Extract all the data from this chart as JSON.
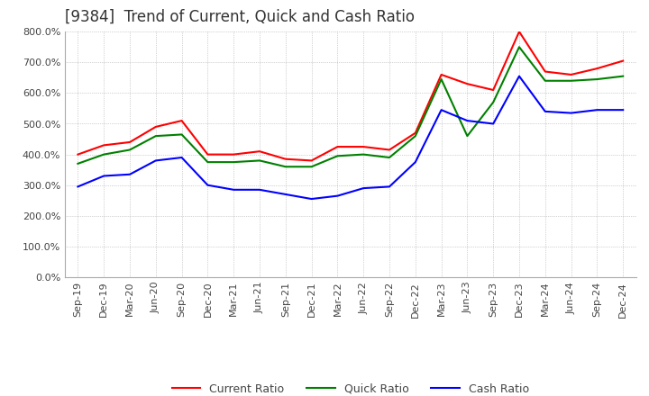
{
  "title": "[9384]  Trend of Current, Quick and Cash Ratio",
  "x_labels": [
    "Sep-19",
    "Dec-19",
    "Mar-20",
    "Jun-20",
    "Sep-20",
    "Dec-20",
    "Mar-21",
    "Jun-21",
    "Sep-21",
    "Dec-21",
    "Mar-22",
    "Jun-22",
    "Sep-22",
    "Dec-22",
    "Mar-23",
    "Jun-23",
    "Sep-23",
    "Dec-23",
    "Mar-24",
    "Jun-24",
    "Sep-24",
    "Dec-24"
  ],
  "current_ratio": [
    400,
    430,
    440,
    490,
    510,
    400,
    400,
    410,
    385,
    380,
    425,
    425,
    415,
    470,
    660,
    630,
    610,
    800,
    670,
    660,
    680,
    705
  ],
  "quick_ratio": [
    370,
    400,
    415,
    460,
    465,
    375,
    375,
    380,
    360,
    360,
    395,
    400,
    390,
    460,
    645,
    460,
    570,
    750,
    640,
    640,
    645,
    655
  ],
  "cash_ratio": [
    295,
    330,
    335,
    380,
    390,
    300,
    285,
    285,
    270,
    255,
    265,
    290,
    295,
    375,
    545,
    510,
    500,
    655,
    540,
    535,
    545,
    545
  ],
  "current_color": "#ff0000",
  "quick_color": "#008000",
  "cash_color": "#0000ff",
  "ylim": [
    0,
    800
  ],
  "yticks": [
    0,
    100,
    200,
    300,
    400,
    500,
    600,
    700,
    800
  ],
  "background_color": "#ffffff",
  "grid_color": "#aaaaaa",
  "title_fontsize": 12,
  "legend_labels": [
    "Current Ratio",
    "Quick Ratio",
    "Cash Ratio"
  ]
}
